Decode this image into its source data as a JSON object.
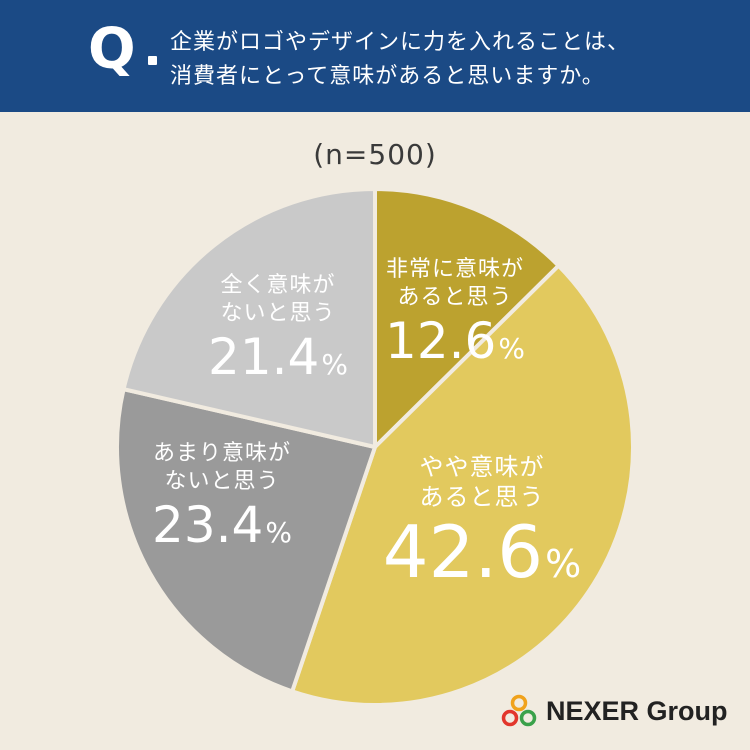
{
  "header": {
    "q_mark": "Q",
    "question_line1": "企業がロゴやデザインに力を入れることは、",
    "question_line2": "消費者にとって意味があると思いますか。"
  },
  "sample_size": "(n=500)",
  "colors": {
    "header_bg": "#1b4a85",
    "background": "#f1ebe0",
    "slice_very": "#bca22f",
    "slice_somewhat": "#e2c95e",
    "slice_not_much": "#9a9a9a",
    "slice_not_at_all": "#c9c9c9"
  },
  "chart_data": {
    "type": "pie",
    "slices": [
      {
        "label_line1": "非常に意味が",
        "label_line2": "あると思う",
        "value": 12.6,
        "value_text": "12.6",
        "unit": "%"
      },
      {
        "label_line1": "やや意味が",
        "label_line2": "あると思う",
        "value": 42.6,
        "value_text": "42.6",
        "unit": "%"
      },
      {
        "label_line1": "あまり意味が",
        "label_line2": "ないと思う",
        "value": 23.4,
        "value_text": "23.4",
        "unit": "%"
      },
      {
        "label_line1": "全く意味が",
        "label_line2": "ないと思う",
        "value": 21.4,
        "value_text": "21.4",
        "unit": "%"
      }
    ],
    "start": "12 o'clock",
    "direction": "clockwise"
  },
  "logo": {
    "text": "NEXER Group",
    "icon": "nexer-rings-icon"
  }
}
